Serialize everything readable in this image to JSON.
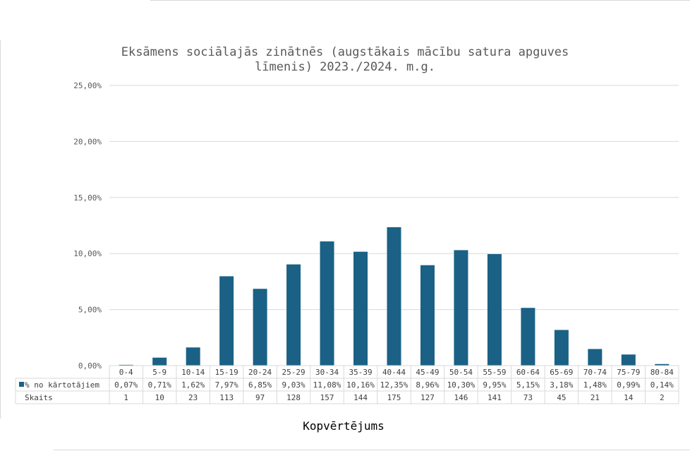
{
  "chart_data": {
    "type": "bar",
    "title": "Eksāmens sociālajās zinātnēs (augstākais mācību satura apguves līmenis) 2023./2024. m.g.",
    "title_lines": [
      "Eksāmens sociālajās zinātnēs (augstākais mācību satura apguves",
      "līmenis) 2023./2024. m.g."
    ],
    "xlabel": "Kopvērtējums",
    "ylabel": "",
    "ylim": [
      0,
      25
    ],
    "yticks": [
      "25,00%",
      "20,00%",
      "15,00%",
      "10,00%",
      "5,00%",
      "0,00%"
    ],
    "grid": true,
    "bar_color": "#1a6185",
    "categories": [
      "0-4",
      "5-9",
      "10-14",
      "15-19",
      "20-24",
      "25-29",
      "30-34",
      "35-39",
      "40-44",
      "45-49",
      "50-54",
      "55-59",
      "60-64",
      "65-69",
      "70-74",
      "75-79",
      "80-84"
    ],
    "series": [
      {
        "name": "% no kārtotājiem",
        "values": [
          0.07,
          0.71,
          1.62,
          7.97,
          6.85,
          9.03,
          11.08,
          10.16,
          12.35,
          8.96,
          10.3,
          9.95,
          5.15,
          3.18,
          1.48,
          0.99,
          0.14
        ],
        "labels": [
          "0,07%",
          "0,71%",
          "1,62%",
          "7,97%",
          "6,85%",
          "9,03%",
          "11,08%",
          "10,16%",
          "12,35%",
          "8,96%",
          "10,30%",
          "9,95%",
          "5,15%",
          "3,18%",
          "1,48%",
          "0,99%",
          "0,14%"
        ]
      }
    ],
    "table": {
      "count_row_label": "Skaits",
      "counts": [
        "1",
        "10",
        "23",
        "113",
        "97",
        "128",
        "157",
        "144",
        "175",
        "127",
        "146",
        "141",
        "73",
        "45",
        "21",
        "14",
        "2"
      ]
    }
  }
}
